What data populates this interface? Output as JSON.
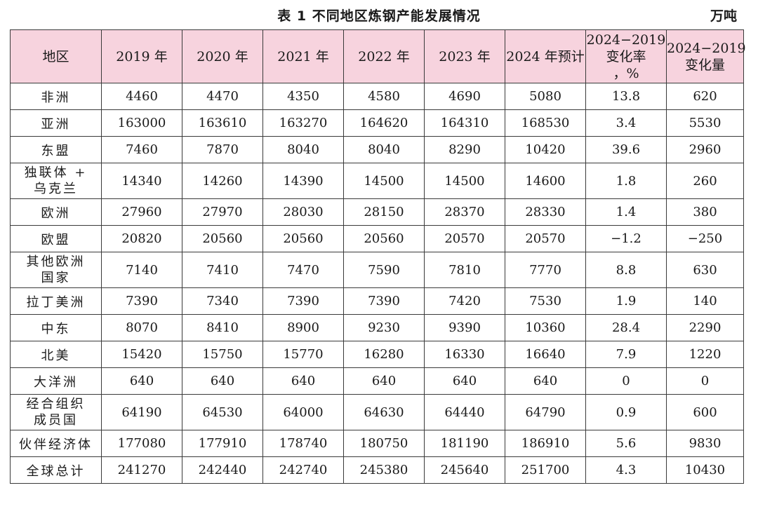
{
  "caption": {
    "title": "表 1  不同地区炼钢产能发展情况",
    "unit": "万吨"
  },
  "headers": [
    "地区",
    "2019 年",
    "2020 年",
    "2021 年",
    "2022 年",
    "2023 年",
    "2024 年预计",
    "2024−2019\n变化率\n，%",
    "2024−2019\n变化量"
  ],
  "rows": [
    [
      "非洲",
      "4460",
      "4470",
      "4350",
      "4580",
      "4690",
      "5080",
      "13.8",
      "620"
    ],
    [
      "亚洲",
      "163000",
      "163610",
      "163270",
      "164620",
      "164310",
      "168530",
      "3.4",
      "5530"
    ],
    [
      "东盟",
      "7460",
      "7870",
      "8040",
      "8040",
      "8290",
      "10420",
      "39.6",
      "2960"
    ],
    [
      "独联体 +\n乌克兰",
      "14340",
      "14260",
      "14390",
      "14500",
      "14500",
      "14600",
      "1.8",
      "260"
    ],
    [
      "欧洲",
      "27960",
      "27970",
      "28030",
      "28150",
      "28370",
      "28330",
      "1.4",
      "380"
    ],
    [
      "欧盟",
      "20820",
      "20560",
      "20560",
      "20560",
      "20570",
      "20570",
      "−1.2",
      "−250"
    ],
    [
      "其他欧洲\n国家",
      "7140",
      "7410",
      "7470",
      "7590",
      "7810",
      "7770",
      "8.8",
      "630"
    ],
    [
      "拉丁美洲",
      "7390",
      "7340",
      "7390",
      "7390",
      "7420",
      "7530",
      "1.9",
      "140"
    ],
    [
      "中东",
      "8070",
      "8410",
      "8900",
      "9230",
      "9390",
      "10360",
      "28.4",
      "2290"
    ],
    [
      "北美",
      "15420",
      "15750",
      "15770",
      "16280",
      "16330",
      "16640",
      "7.9",
      "1220"
    ],
    [
      "大洋洲",
      "640",
      "640",
      "640",
      "640",
      "640",
      "640",
      "0",
      "0"
    ],
    [
      "经合组织\n成员国",
      "64190",
      "64530",
      "64000",
      "64630",
      "64440",
      "64790",
      "0.9",
      "600"
    ],
    [
      "伙伴经济体",
      "177080",
      "177910",
      "178740",
      "180750",
      "181190",
      "186910",
      "5.6",
      "9830"
    ],
    [
      "全球总计",
      "241270",
      "242440",
      "242740",
      "245380",
      "245640",
      "251700",
      "4.3",
      "10430"
    ]
  ]
}
